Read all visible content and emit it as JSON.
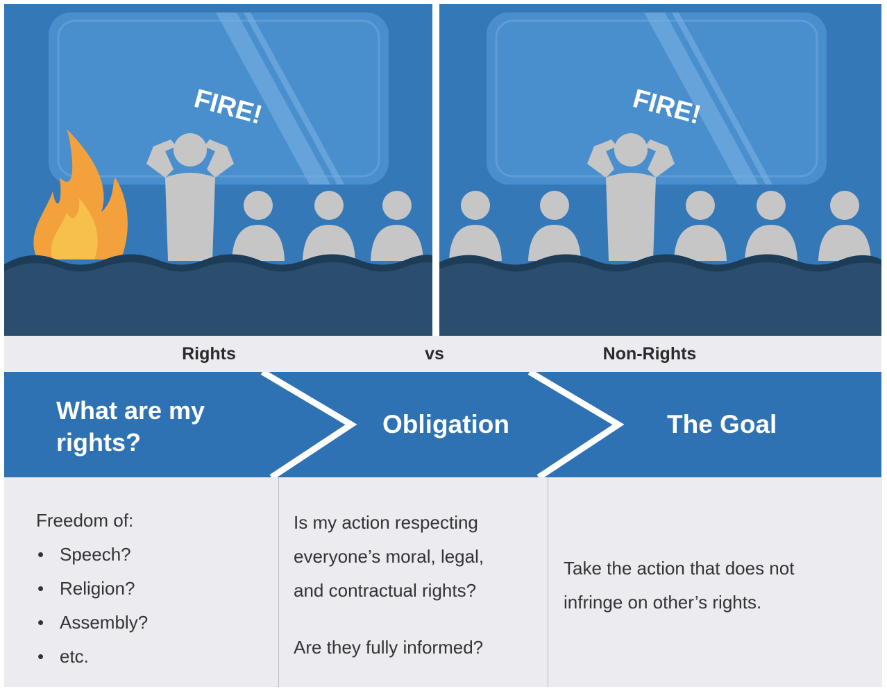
{
  "scenes": {
    "left": {
      "shout": "FIRE!",
      "has_fire": true
    },
    "right": {
      "shout": "FIRE!",
      "has_fire": false
    }
  },
  "captions": {
    "left": "Rights",
    "middle": "vs",
    "right": "Non-Rights"
  },
  "steps": [
    {
      "line1": "What are my",
      "line2": "rights?"
    },
    {
      "label": "Obligation"
    },
    {
      "label": "The Goal"
    }
  ],
  "columns": {
    "rights": {
      "heading": "Freedom of:",
      "items": [
        "Speech?",
        "Religion?",
        "Assembly?",
        "etc."
      ]
    },
    "obligation": {
      "line1": "Is my action respecting",
      "line2": "everyone’s moral, legal,",
      "line3": "and contractual rights?",
      "question2": "Are they fully informed?"
    },
    "goal": {
      "line1": "Take the action that does not",
      "line2": "infringe on other’s rights."
    }
  },
  "colors": {
    "scene_blue": "#3478b8",
    "screen_blue": "#4a8fcd",
    "audience": "#c6c6c6",
    "seats": "#2b4d6e",
    "banner_blue": "#2f72b3",
    "fire_orange": "#f2a13d",
    "panel_gray": "#ebebf0"
  }
}
